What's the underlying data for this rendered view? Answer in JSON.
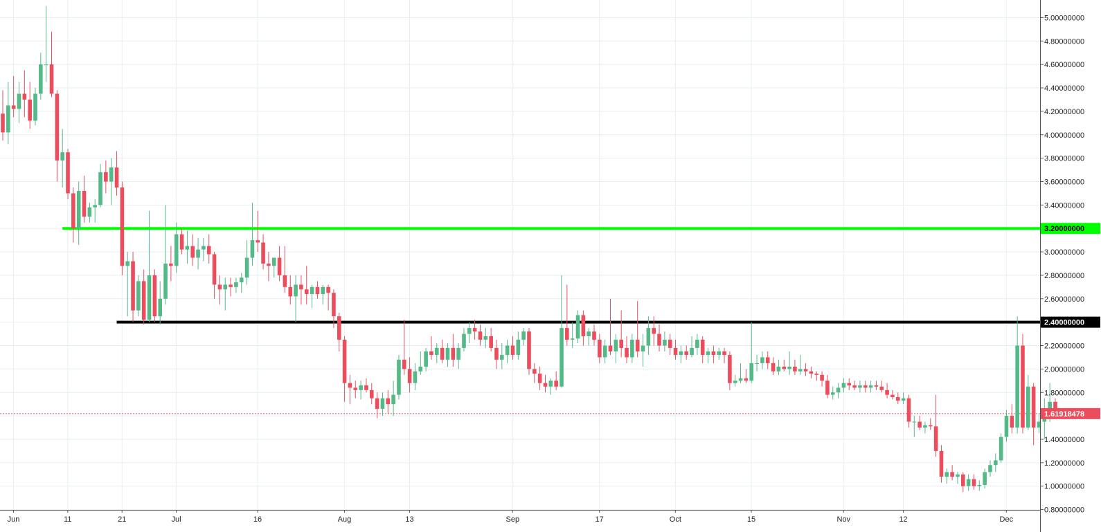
{
  "chart_data": {
    "type": "candlestick",
    "title": "",
    "x_labels": [
      "Jun",
      "11",
      "21",
      "Jul",
      "16",
      "Aug",
      "13",
      "Sep",
      "17",
      "Oct",
      "15",
      "Nov",
      "12",
      "Dec"
    ],
    "y_tick_labels": [
      "5.00000000",
      "4.80000000",
      "4.60000000",
      "4.40000000",
      "4.20000000",
      "4.00000000",
      "3.80000000",
      "3.60000000",
      "3.40000000",
      "3.20000000",
      "3.00000000",
      "2.80000000",
      "2.60000000",
      "2.40000000",
      "2.20000000",
      "2.00000000",
      "1.80000000",
      "1.60000000",
      "1.40000000",
      "1.20000000",
      "1.00000000",
      "0.80000000"
    ],
    "y_range": [
      0.7,
      5.1
    ],
    "grid": true,
    "colors": {
      "up": "#53b987",
      "down": "#eb4d5c",
      "support": "#000000",
      "resistance": "#00ff00",
      "current": "#eb4d5c"
    },
    "resistance_level": {
      "value": 3.2,
      "label": "3.20000000",
      "start_date": "Jun 12"
    },
    "support_level": {
      "value": 2.4,
      "label": "2.40000000",
      "start_date": "Jun 22"
    },
    "current_price": {
      "value": 1.61918478,
      "label": "1.61918478"
    },
    "series": [
      [
        "2018-06-01",
        4.18,
        4.38,
        3.95,
        4.02
      ],
      [
        "2018-06-02",
        4.02,
        4.45,
        3.92,
        4.25
      ],
      [
        "2018-06-03",
        4.25,
        4.5,
        4.15,
        4.22
      ],
      [
        "2018-06-04",
        4.22,
        4.45,
        4.1,
        4.35
      ],
      [
        "2018-06-05",
        4.35,
        4.55,
        4.15,
        4.3
      ],
      [
        "2018-06-06",
        4.3,
        4.45,
        4.05,
        4.12
      ],
      [
        "2018-06-07",
        4.12,
        4.4,
        4.08,
        4.35
      ],
      [
        "2018-06-08",
        4.35,
        4.7,
        4.3,
        4.6
      ],
      [
        "2018-06-09",
        4.6,
        5.1,
        4.45,
        4.6
      ],
      [
        "2018-06-10",
        4.6,
        4.88,
        4.32,
        4.35
      ],
      [
        "2018-06-11",
        4.35,
        4.38,
        3.6,
        3.78
      ],
      [
        "2018-06-12",
        3.78,
        4.05,
        3.55,
        3.85
      ],
      [
        "2018-06-13",
        3.85,
        3.88,
        3.45,
        3.5
      ],
      [
        "2018-06-14",
        3.5,
        3.55,
        3.08,
        3.2
      ],
      [
        "2018-06-15",
        3.2,
        3.6,
        3.06,
        3.52
      ],
      [
        "2018-06-16",
        3.52,
        3.65,
        3.25,
        3.3
      ],
      [
        "2018-06-17",
        3.3,
        3.42,
        3.25,
        3.38
      ],
      [
        "2018-06-18",
        3.38,
        3.45,
        3.25,
        3.4
      ],
      [
        "2018-06-19",
        3.4,
        3.75,
        3.38,
        3.68
      ],
      [
        "2018-06-20",
        3.68,
        3.78,
        3.5,
        3.6
      ],
      [
        "2018-06-21",
        3.6,
        3.8,
        3.4,
        3.72
      ],
      [
        "2018-06-22",
        3.72,
        3.86,
        3.48,
        3.55
      ],
      [
        "2018-06-23",
        3.55,
        3.6,
        2.8,
        2.88
      ],
      [
        "2018-06-24",
        2.88,
        3.0,
        2.45,
        2.92
      ],
      [
        "2018-06-25",
        2.92,
        3.0,
        2.4,
        2.5
      ],
      [
        "2018-06-26",
        2.5,
        2.8,
        2.45,
        2.75
      ],
      [
        "2018-06-27",
        2.75,
        2.85,
        2.38,
        2.42
      ],
      [
        "2018-06-28",
        2.42,
        3.35,
        2.4,
        2.8
      ],
      [
        "2018-06-29",
        2.8,
        2.85,
        2.4,
        2.45
      ],
      [
        "2018-06-30",
        2.45,
        2.75,
        2.38,
        2.6
      ],
      [
        "2018-07-01",
        2.6,
        3.4,
        2.55,
        2.9
      ],
      [
        "2018-07-02",
        2.9,
        3.05,
        2.75,
        2.88
      ],
      [
        "2018-07-03",
        2.88,
        3.25,
        2.82,
        3.15
      ],
      [
        "2018-07-04",
        3.15,
        3.2,
        2.98,
        3.02
      ],
      [
        "2018-07-05",
        3.02,
        3.18,
        2.9,
        3.05
      ],
      [
        "2018-07-06",
        3.05,
        3.15,
        2.88,
        2.95
      ],
      [
        "2018-07-07",
        2.95,
        3.12,
        2.85,
        3.02
      ],
      [
        "2018-07-08",
        3.02,
        3.12,
        2.92,
        3.05
      ],
      [
        "2018-07-09",
        3.05,
        3.15,
        2.9,
        2.98
      ],
      [
        "2018-07-10",
        2.98,
        3.0,
        2.6,
        2.72
      ],
      [
        "2018-07-11",
        2.72,
        2.8,
        2.55,
        2.68
      ],
      [
        "2018-07-12",
        2.68,
        2.78,
        2.5,
        2.72
      ],
      [
        "2018-07-13",
        2.72,
        2.78,
        2.62,
        2.7
      ],
      [
        "2018-07-14",
        2.7,
        2.78,
        2.65,
        2.74
      ],
      [
        "2018-07-15",
        2.74,
        2.82,
        2.65,
        2.78
      ],
      [
        "2018-07-16",
        2.78,
        3.1,
        2.72,
        2.95
      ],
      [
        "2018-07-17",
        2.95,
        3.42,
        2.88,
        3.1
      ],
      [
        "2018-07-18",
        3.1,
        3.35,
        3.0,
        3.08
      ],
      [
        "2018-07-19",
        3.08,
        3.15,
        2.85,
        2.9
      ],
      [
        "2018-07-20",
        2.9,
        3.0,
        2.75,
        2.88
      ],
      [
        "2018-07-21",
        2.88,
        2.95,
        2.78,
        2.95
      ],
      [
        "2018-07-22",
        2.95,
        3.05,
        2.75,
        2.8
      ],
      [
        "2018-07-23",
        2.8,
        3.05,
        2.65,
        2.7
      ],
      [
        "2018-07-24",
        2.7,
        2.8,
        2.55,
        2.62
      ],
      [
        "2018-07-25",
        2.62,
        2.8,
        2.4,
        2.72
      ],
      [
        "2018-07-26",
        2.72,
        2.8,
        2.55,
        2.68
      ],
      [
        "2018-07-27",
        2.68,
        2.88,
        2.55,
        2.64
      ],
      [
        "2018-07-28",
        2.64,
        2.72,
        2.52,
        2.7
      ],
      [
        "2018-07-29",
        2.7,
        2.75,
        2.6,
        2.64
      ],
      [
        "2018-07-30",
        2.64,
        2.72,
        2.55,
        2.7
      ],
      [
        "2018-07-31",
        2.7,
        2.72,
        2.5,
        2.65
      ],
      [
        "2018-08-01",
        2.65,
        2.68,
        2.35,
        2.45
      ],
      [
        "2018-08-02",
        2.45,
        2.48,
        2.15,
        2.25
      ],
      [
        "2018-08-03",
        2.25,
        2.28,
        1.72,
        1.88
      ],
      [
        "2018-08-04",
        1.88,
        1.95,
        1.7,
        1.84
      ],
      [
        "2018-08-05",
        1.84,
        1.9,
        1.75,
        1.82
      ],
      [
        "2018-08-06",
        1.82,
        1.9,
        1.74,
        1.86
      ],
      [
        "2018-08-07",
        1.86,
        1.92,
        1.8,
        1.82
      ],
      [
        "2018-08-08",
        1.82,
        1.88,
        1.7,
        1.75
      ],
      [
        "2018-08-09",
        1.75,
        1.8,
        1.58,
        1.66
      ],
      [
        "2018-08-10",
        1.66,
        1.8,
        1.6,
        1.75
      ],
      [
        "2018-08-11",
        1.75,
        1.82,
        1.62,
        1.7
      ],
      [
        "2018-08-12",
        1.7,
        1.9,
        1.6,
        1.78
      ],
      [
        "2018-08-13",
        1.78,
        2.12,
        1.74,
        2.08
      ],
      [
        "2018-08-14",
        2.08,
        2.42,
        1.95,
        2.0
      ],
      [
        "2018-08-15",
        2.0,
        2.1,
        1.8,
        1.88
      ],
      [
        "2018-08-16",
        1.88,
        2.05,
        1.82,
        1.98
      ],
      [
        "2018-08-17",
        1.98,
        2.15,
        1.95,
        2.02
      ],
      [
        "2018-08-18",
        2.02,
        2.18,
        1.98,
        2.15
      ],
      [
        "2018-08-19",
        2.15,
        2.28,
        2.08,
        2.12
      ],
      [
        "2018-08-20",
        2.12,
        2.22,
        2.05,
        2.18
      ],
      [
        "2018-08-21",
        2.18,
        2.25,
        2.05,
        2.08
      ],
      [
        "2018-08-22",
        2.08,
        2.22,
        2.02,
        2.18
      ],
      [
        "2018-08-23",
        2.18,
        2.3,
        2.02,
        2.08
      ],
      [
        "2018-08-24",
        2.08,
        2.22,
        2.0,
        2.18
      ],
      [
        "2018-08-25",
        2.18,
        2.35,
        2.15,
        2.3
      ],
      [
        "2018-08-26",
        2.3,
        2.4,
        2.22,
        2.35
      ],
      [
        "2018-08-27",
        2.35,
        2.42,
        2.25,
        2.32
      ],
      [
        "2018-08-28",
        2.32,
        2.38,
        2.2,
        2.25
      ],
      [
        "2018-08-29",
        2.25,
        2.35,
        2.18,
        2.28
      ],
      [
        "2018-08-30",
        2.28,
        2.35,
        2.15,
        2.18
      ],
      [
        "2018-08-31",
        2.18,
        2.25,
        2.0,
        2.08
      ],
      [
        "2018-09-01",
        2.08,
        2.22,
        2.0,
        2.12
      ],
      [
        "2018-09-02",
        2.12,
        2.25,
        2.05,
        2.2
      ],
      [
        "2018-09-03",
        2.2,
        2.28,
        2.08,
        2.12
      ],
      [
        "2018-09-04",
        2.12,
        2.32,
        2.08,
        2.25
      ],
      [
        "2018-09-05",
        2.25,
        2.35,
        2.2,
        2.32
      ],
      [
        "2018-09-06",
        2.32,
        2.35,
        1.95,
        2.0
      ],
      [
        "2018-09-07",
        2.0,
        2.05,
        1.88,
        1.96
      ],
      [
        "2018-09-08",
        1.96,
        2.02,
        1.82,
        1.88
      ],
      [
        "2018-09-09",
        1.88,
        1.95,
        1.8,
        1.85
      ],
      [
        "2018-09-10",
        1.85,
        1.92,
        1.78,
        1.9
      ],
      [
        "2018-09-11",
        1.9,
        1.98,
        1.82,
        1.85
      ],
      [
        "2018-09-12",
        1.85,
        2.8,
        1.84,
        2.35
      ],
      [
        "2018-09-13",
        2.35,
        2.72,
        2.2,
        2.25
      ],
      [
        "2018-09-14",
        2.25,
        2.4,
        2.18,
        2.26
      ],
      [
        "2018-09-15",
        2.26,
        2.5,
        2.22,
        2.46
      ],
      [
        "2018-09-16",
        2.46,
        2.5,
        2.2,
        2.28
      ],
      [
        "2018-09-17",
        2.28,
        2.35,
        2.2,
        2.32
      ],
      [
        "2018-09-18",
        2.32,
        2.38,
        2.2,
        2.25
      ],
      [
        "2018-09-19",
        2.25,
        2.3,
        2.05,
        2.1
      ],
      [
        "2018-09-20",
        2.1,
        2.25,
        2.05,
        2.2
      ],
      [
        "2018-09-21",
        2.2,
        2.6,
        2.12,
        2.15
      ],
      [
        "2018-09-22",
        2.15,
        2.3,
        2.05,
        2.25
      ],
      [
        "2018-09-23",
        2.25,
        2.5,
        2.1,
        2.18
      ],
      [
        "2018-09-24",
        2.18,
        2.28,
        2.05,
        2.1
      ],
      [
        "2018-09-25",
        2.1,
        2.3,
        2.05,
        2.25
      ],
      [
        "2018-09-26",
        2.25,
        2.58,
        2.1,
        2.15
      ],
      [
        "2018-09-27",
        2.15,
        2.3,
        2.02,
        2.2
      ],
      [
        "2018-09-28",
        2.2,
        2.45,
        2.12,
        2.35
      ],
      [
        "2018-09-29",
        2.35,
        2.45,
        2.2,
        2.3
      ],
      [
        "2018-09-30",
        2.3,
        2.38,
        2.15,
        2.2
      ],
      [
        "2018-10-01",
        2.2,
        2.32,
        2.15,
        2.25
      ],
      [
        "2018-10-02",
        2.25,
        2.3,
        2.12,
        2.18
      ],
      [
        "2018-10-03",
        2.18,
        2.25,
        2.08,
        2.12
      ],
      [
        "2018-10-04",
        2.12,
        2.2,
        2.05,
        2.15
      ],
      [
        "2018-10-05",
        2.15,
        2.2,
        2.08,
        2.12
      ],
      [
        "2018-10-06",
        2.12,
        2.28,
        2.1,
        2.18
      ],
      [
        "2018-10-07",
        2.18,
        2.3,
        2.12,
        2.25
      ],
      [
        "2018-10-08",
        2.25,
        2.28,
        2.05,
        2.12
      ],
      [
        "2018-10-09",
        2.12,
        2.18,
        2.05,
        2.15
      ],
      [
        "2018-10-10",
        2.15,
        2.2,
        2.05,
        2.12
      ],
      [
        "2018-10-11",
        2.12,
        2.18,
        2.08,
        2.15
      ],
      [
        "2018-10-12",
        2.15,
        2.18,
        2.05,
        2.12
      ],
      [
        "2018-10-13",
        2.12,
        2.15,
        1.82,
        1.88
      ],
      [
        "2018-10-14",
        1.88,
        1.95,
        1.85,
        1.9
      ],
      [
        "2018-10-15",
        1.9,
        2.05,
        1.88,
        1.92
      ],
      [
        "2018-10-16",
        1.92,
        2.0,
        1.88,
        1.9
      ],
      [
        "2018-10-17",
        1.9,
        2.4,
        1.88,
        2.05
      ],
      [
        "2018-10-18",
        2.05,
        2.12,
        1.98,
        2.05
      ],
      [
        "2018-10-19",
        2.05,
        2.15,
        2.0,
        2.1
      ],
      [
        "2018-10-20",
        2.1,
        2.15,
        2.0,
        2.05
      ],
      [
        "2018-10-21",
        2.05,
        2.1,
        1.95,
        1.98
      ],
      [
        "2018-10-22",
        1.98,
        2.08,
        1.95,
        2.02
      ],
      [
        "2018-10-23",
        2.02,
        2.08,
        1.98,
        2.0
      ],
      [
        "2018-10-24",
        2.0,
        2.15,
        1.95,
        2.02
      ],
      [
        "2018-10-25",
        2.02,
        2.08,
        1.95,
        1.98
      ],
      [
        "2018-10-26",
        1.98,
        2.12,
        1.95,
        2.0
      ],
      [
        "2018-10-27",
        2.0,
        2.05,
        1.94,
        1.98
      ],
      [
        "2018-10-28",
        1.98,
        2.02,
        1.92,
        1.96
      ],
      [
        "2018-10-29",
        1.96,
        1.98,
        1.9,
        1.95
      ],
      [
        "2018-10-30",
        1.95,
        1.98,
        1.85,
        1.9
      ],
      [
        "2018-10-31",
        1.9,
        1.95,
        1.75,
        1.78
      ],
      [
        "2018-11-01",
        1.78,
        1.85,
        1.74,
        1.8
      ],
      [
        "2018-11-02",
        1.8,
        1.88,
        1.75,
        1.84
      ],
      [
        "2018-11-03",
        1.84,
        1.92,
        1.8,
        1.88
      ],
      [
        "2018-11-04",
        1.88,
        1.92,
        1.82,
        1.86
      ],
      [
        "2018-11-05",
        1.86,
        1.9,
        1.82,
        1.84
      ],
      [
        "2018-11-06",
        1.84,
        1.9,
        1.8,
        1.86
      ],
      [
        "2018-11-07",
        1.86,
        1.9,
        1.8,
        1.84
      ],
      [
        "2018-11-08",
        1.84,
        1.9,
        1.8,
        1.86
      ],
      [
        "2018-11-09",
        1.86,
        1.9,
        1.82,
        1.85
      ],
      [
        "2018-11-10",
        1.85,
        1.9,
        1.8,
        1.82
      ],
      [
        "2018-11-11",
        1.82,
        1.88,
        1.75,
        1.78
      ],
      [
        "2018-11-12",
        1.78,
        1.82,
        1.74,
        1.76
      ],
      [
        "2018-11-13",
        1.76,
        1.8,
        1.7,
        1.73
      ],
      [
        "2018-11-14",
        1.73,
        1.8,
        1.7,
        1.75
      ],
      [
        "2018-11-15",
        1.75,
        1.78,
        1.5,
        1.55
      ],
      [
        "2018-11-16",
        1.55,
        1.6,
        1.42,
        1.55
      ],
      [
        "2018-11-17",
        1.55,
        1.6,
        1.48,
        1.5
      ],
      [
        "2018-11-18",
        1.5,
        1.55,
        1.45,
        1.52
      ],
      [
        "2018-11-19",
        1.52,
        1.58,
        1.48,
        1.51
      ],
      [
        "2018-11-20",
        1.51,
        1.78,
        1.25,
        1.3
      ],
      [
        "2018-11-21",
        1.3,
        1.35,
        1.03,
        1.08
      ],
      [
        "2018-11-22",
        1.08,
        1.15,
        1.02,
        1.12
      ],
      [
        "2018-11-23",
        1.12,
        1.18,
        1.05,
        1.08
      ],
      [
        "2018-11-24",
        1.08,
        1.12,
        1.02,
        1.1
      ],
      [
        "2018-11-25",
        1.1,
        1.12,
        0.95,
        1.0
      ],
      [
        "2018-11-26",
        1.0,
        1.1,
        0.96,
        1.06
      ],
      [
        "2018-11-27",
        1.06,
        1.1,
        0.97,
        1.0
      ],
      [
        "2018-11-28",
        1.0,
        1.05,
        0.96,
        1.01
      ],
      [
        "2018-11-29",
        1.01,
        1.15,
        0.98,
        1.12
      ],
      [
        "2018-11-30",
        1.12,
        1.22,
        1.08,
        1.18
      ],
      [
        "2018-12-01",
        1.18,
        1.28,
        1.12,
        1.22
      ],
      [
        "2018-12-02",
        1.22,
        1.45,
        1.2,
        1.42
      ],
      [
        "2018-12-03",
        1.42,
        1.65,
        1.38,
        1.6
      ],
      [
        "2018-12-04",
        1.6,
        1.7,
        1.45,
        1.5
      ],
      [
        "2018-12-05",
        1.5,
        2.45,
        1.45,
        2.2
      ],
      [
        "2018-12-06",
        2.2,
        2.3,
        1.45,
        1.5
      ],
      [
        "2018-12-07",
        1.5,
        1.95,
        1.48,
        1.85
      ],
      [
        "2018-12-08",
        1.85,
        1.88,
        1.35,
        1.5
      ],
      [
        "2018-12-09",
        1.5,
        1.62,
        1.45,
        1.55
      ],
      [
        "2018-12-10",
        1.55,
        1.75,
        1.4,
        1.62
      ],
      [
        "2018-12-11",
        1.62,
        1.88,
        1.55,
        1.72
      ],
      [
        "2018-12-12",
        1.72,
        1.75,
        1.6,
        1.62
      ]
    ]
  }
}
